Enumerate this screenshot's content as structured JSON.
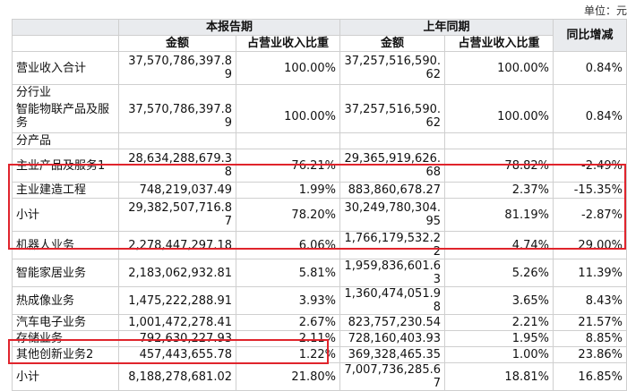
{
  "unit_label": "单位：元",
  "headers": {
    "current_period": "本报告期",
    "prior_period": "上年同期",
    "yoy_change": "同比增减",
    "amount": "金额",
    "revenue_share": "占营业收入比重"
  },
  "rows": [
    {
      "label": "营业收入合计",
      "cur_amount": "37,570,786,397.89",
      "cur_share": "100.00%",
      "prev_amount": "37,257,516,590.62",
      "prev_share": "100.00%",
      "yoy": "0.84%"
    },
    {
      "label": "分行业",
      "section": true
    },
    {
      "label": "智能物联产品及服务",
      "cur_amount": "37,570,786,397.89",
      "cur_share": "100.00%",
      "prev_amount": "37,257,516,590.62",
      "prev_share": "100.00%",
      "yoy": "0.84%"
    },
    {
      "label": "分产品",
      "section": true
    },
    {
      "label": "主业产品及服务1",
      "cur_amount": "28,634,288,679.38",
      "cur_share": "76.21%",
      "prev_amount": "29,365,919,626.68",
      "prev_share": "78.82%",
      "yoy": "-2.49%"
    },
    {
      "label": "主业建造工程",
      "cur_amount": "748,219,037.49",
      "cur_share": "1.99%",
      "prev_amount": "883,860,678.27",
      "prev_share": "2.37%",
      "yoy": "-15.35%"
    },
    {
      "label": "小计",
      "cur_amount": "29,382,507,716.87",
      "cur_share": "78.20%",
      "prev_amount": "30,249,780,304.95",
      "prev_share": "81.19%",
      "yoy": "-2.87%"
    },
    {
      "label": "机器人业务",
      "cur_amount": "2,278,447,297.18",
      "cur_share": "6.06%",
      "prev_amount": "1,766,179,532.22",
      "prev_share": "4.74%",
      "yoy": "29.00%"
    },
    {
      "label": "智能家居业务",
      "cur_amount": "2,183,062,932.81",
      "cur_share": "5.81%",
      "prev_amount": "1,959,836,601.63",
      "prev_share": "5.26%",
      "yoy": "11.39%"
    },
    {
      "label": "热成像业务",
      "cur_amount": "1,475,222,288.91",
      "cur_share": "3.93%",
      "prev_amount": "1,360,474,051.98",
      "prev_share": "3.65%",
      "yoy": "8.43%"
    },
    {
      "label": "汽车电子业务",
      "cur_amount": "1,001,472,278.41",
      "cur_share": "2.67%",
      "prev_amount": "823,757,230.54",
      "prev_share": "2.21%",
      "yoy": "21.57%"
    },
    {
      "label": "存储业务",
      "cur_amount": "792,630,227.93",
      "cur_share": "2.11%",
      "prev_amount": "728,160,403.93",
      "prev_share": "1.95%",
      "yoy": "8.85%"
    },
    {
      "label": "其他创新业务2",
      "cur_amount": "457,443,655.78",
      "cur_share": "1.22%",
      "prev_amount": "369,328,465.35",
      "prev_share": "1.00%",
      "yoy": "23.86%"
    },
    {
      "label": "小计",
      "cur_amount": "8,188,278,681.02",
      "cur_share": "21.80%",
      "prev_amount": "7,007,736,285.67",
      "prev_share": "18.81%",
      "yoy": "16.85%"
    }
  ],
  "highlight_color": "#e0242c"
}
